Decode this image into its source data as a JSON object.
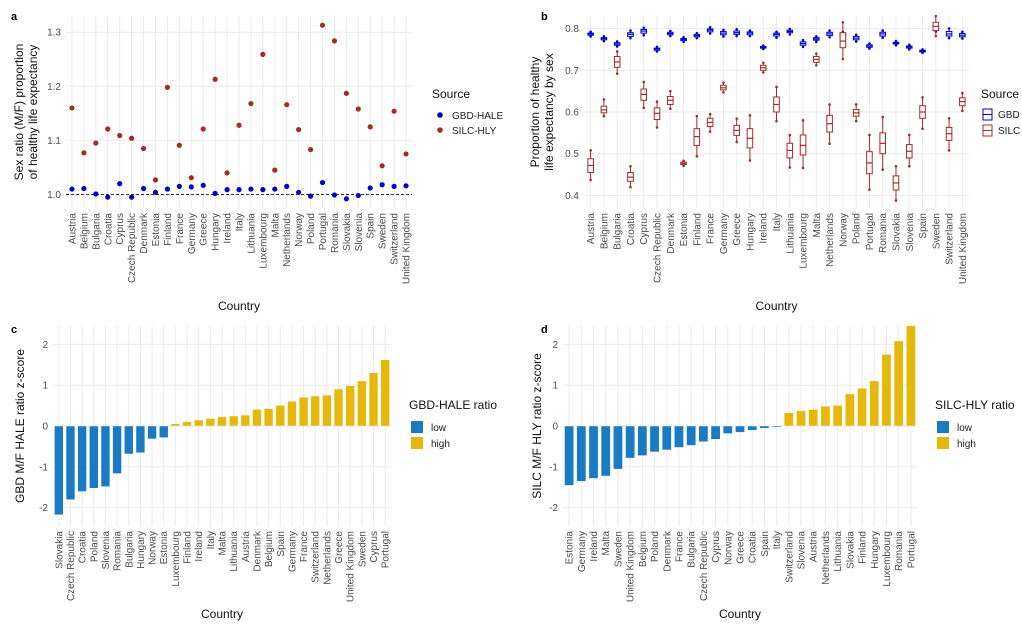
{
  "panel_labels": [
    "a",
    "b",
    "c",
    "d"
  ],
  "colors": {
    "gbd": "#0000cc",
    "silc": "#a52a2a",
    "low": "#1a7ac4",
    "high": "#e6b80c"
  },
  "chart_data": [
    {
      "type": "scatter",
      "panel": "a",
      "ylabel": "Sex ratio (M/F) proportion\nof healthy life expectancy",
      "xlabel": "Country",
      "ylim": [
        0.975,
        1.33
      ],
      "yticks": [
        1.0,
        1.1,
        1.2,
        1.3
      ],
      "yticklabels": [
        "1.0",
        "1.1",
        "1.2",
        "1.3"
      ],
      "reference_line": 1.0,
      "grid": true,
      "legend_position": "right",
      "legend_title": "Source",
      "categories": [
        "Austria",
        "Belgium",
        "Bulgaria",
        "Croatia",
        "Cyprus",
        "Czech Republic",
        "Denmark",
        "Estonia",
        "Finland",
        "France",
        "Germany",
        "Greece",
        "Hungary",
        "Ireland",
        "Italy",
        "Lithuania",
        "Luxembourg",
        "Malta",
        "Netherlands",
        "Norway",
        "Poland",
        "Portugal",
        "Romania",
        "Slovakia",
        "Slovenia",
        "Spain",
        "Sweden",
        "Switzerland",
        "United Kingdom"
      ],
      "series": [
        {
          "name": "GBD-HALE",
          "color": "#0000cc",
          "values": [
            1.01,
            1.011,
            1.001,
            0.995,
            1.02,
            0.995,
            1.011,
            1.004,
            1.01,
            1.015,
            1.014,
            1.017,
            1.002,
            1.009,
            1.009,
            1.01,
            1.009,
            1.01,
            1.015,
            1.004,
            0.997,
            1.022,
            0.999,
            0.992,
            0.998,
            1.012,
            1.018,
            1.015,
            1.016
          ]
        },
        {
          "name": "SILC-HLY",
          "color": "#a52a2a",
          "values": [
            1.16,
            1.077,
            1.095,
            1.121,
            1.109,
            1.104,
            1.085,
            1.027,
            1.198,
            1.091,
            1.031,
            1.121,
            1.213,
            1.04,
            1.128,
            1.168,
            1.259,
            1.045,
            1.166,
            1.12,
            1.083,
            1.313,
            1.284,
            1.187,
            1.158,
            1.125,
            1.053,
            1.154,
            1.075
          ]
        }
      ]
    },
    {
      "type": "box",
      "panel": "b",
      "ylabel": "Proportion of healthy\nlife expectancy by sex",
      "xlabel": "Country",
      "ylim": [
        0.37,
        0.83
      ],
      "yticks": [
        0.4,
        0.5,
        0.6,
        0.7,
        0.8
      ],
      "yticklabels": [
        "0.4",
        "0.5",
        "0.6",
        "0.7",
        "0.8"
      ],
      "grid": true,
      "legend_position": "right",
      "legend_title": "Source",
      "legend_labels": [
        "GBD",
        "SILC"
      ],
      "categories": [
        "Austria",
        "Belgium",
        "Bulgaria",
        "Croatia",
        "Cyprus",
        "Czech Republic",
        "Denmark",
        "Estonia",
        "Finland",
        "France",
        "Germany",
        "Greece",
        "Hungary",
        "Ireland",
        "Italy",
        "Lithuania",
        "Luxembourg",
        "Malta",
        "Netherlands",
        "Norway",
        "Poland",
        "Portugal",
        "Romania",
        "Slovakia",
        "Slovenia",
        "Spain",
        "Sweden",
        "Switzerland",
        "United Kingdom"
      ],
      "series": [
        {
          "name": "GBD",
          "color": "#0000cc",
          "boxes": [
            [
              0.781,
              0.784,
              0.787,
              0.789,
              0.792
            ],
            [
              0.77,
              0.773,
              0.776,
              0.778,
              0.781
            ],
            [
              0.757,
              0.76,
              0.763,
              0.766,
              0.769
            ],
            [
              0.777,
              0.781,
              0.786,
              0.79,
              0.795
            ],
            [
              0.784,
              0.789,
              0.794,
              0.798,
              0.802
            ],
            [
              0.745,
              0.748,
              0.751,
              0.753,
              0.756
            ],
            [
              0.782,
              0.785,
              0.788,
              0.791,
              0.794
            ],
            [
              0.768,
              0.771,
              0.774,
              0.776,
              0.779
            ],
            [
              0.777,
              0.78,
              0.783,
              0.786,
              0.789
            ],
            [
              0.788,
              0.792,
              0.796,
              0.799,
              0.803
            ],
            [
              0.781,
              0.785,
              0.789,
              0.793,
              0.797
            ],
            [
              0.782,
              0.786,
              0.79,
              0.794,
              0.798
            ],
            [
              0.782,
              0.785,
              0.789,
              0.792,
              0.795
            ],
            [
              0.751,
              0.753,
              0.755,
              0.757,
              0.759
            ],
            [
              0.778,
              0.782,
              0.786,
              0.789,
              0.792
            ],
            [
              0.786,
              0.79,
              0.793,
              0.796,
              0.799
            ],
            [
              0.756,
              0.76,
              0.764,
              0.768,
              0.772
            ],
            [
              0.768,
              0.772,
              0.775,
              0.778,
              0.781
            ],
            [
              0.779,
              0.783,
              0.787,
              0.791,
              0.795
            ],
            [
              0.779,
              0.782,
              0.786,
              0.789,
              0.792
            ],
            [
              0.769,
              0.773,
              0.777,
              0.781,
              0.785
            ],
            [
              0.752,
              0.755,
              0.758,
              0.761,
              0.764
            ],
            [
              0.778,
              0.782,
              0.787,
              0.791,
              0.795
            ],
            [
              0.76,
              0.763,
              0.765,
              0.767,
              0.77
            ],
            [
              0.75,
              0.753,
              0.756,
              0.758,
              0.761
            ],
            [
              0.742,
              0.744,
              0.746,
              0.748,
              0.75
            ],
            [
              0.793,
              0.796,
              0.799,
              0.802,
              0.805
            ],
            [
              0.777,
              0.782,
              0.787,
              0.793,
              0.8
            ],
            [
              0.776,
              0.78,
              0.784,
              0.788,
              0.792
            ]
          ]
        },
        {
          "name": "SILC",
          "color": "#a52a2a",
          "boxes": [
            [
              0.437,
              0.455,
              0.472,
              0.488,
              0.508
            ],
            [
              0.59,
              0.598,
              0.605,
              0.614,
              0.63
            ],
            [
              0.692,
              0.707,
              0.72,
              0.733,
              0.745
            ],
            [
              0.42,
              0.434,
              0.444,
              0.455,
              0.47
            ],
            [
              0.61,
              0.628,
              0.642,
              0.655,
              0.672
            ],
            [
              0.563,
              0.582,
              0.597,
              0.61,
              0.625
            ],
            [
              0.608,
              0.618,
              0.628,
              0.637,
              0.65
            ],
            [
              0.471,
              0.474,
              0.477,
              0.48,
              0.483
            ],
            [
              0.494,
              0.52,
              0.541,
              0.56,
              0.59
            ],
            [
              0.553,
              0.565,
              0.575,
              0.585,
              0.595
            ],
            [
              0.647,
              0.653,
              0.658,
              0.664,
              0.67
            ],
            [
              0.528,
              0.544,
              0.556,
              0.568,
              0.584
            ],
            [
              0.484,
              0.514,
              0.537,
              0.56,
              0.592
            ],
            [
              0.695,
              0.7,
              0.706,
              0.712,
              0.718
            ],
            [
              0.578,
              0.6,
              0.618,
              0.636,
              0.66
            ],
            [
              0.467,
              0.49,
              0.508,
              0.525,
              0.545
            ],
            [
              0.466,
              0.497,
              0.52,
              0.545,
              0.58
            ],
            [
              0.712,
              0.719,
              0.726,
              0.733,
              0.74
            ],
            [
              0.524,
              0.552,
              0.572,
              0.592,
              0.618
            ],
            [
              0.727,
              0.754,
              0.77,
              0.79,
              0.815
            ],
            [
              0.578,
              0.59,
              0.598,
              0.606,
              0.618
            ],
            [
              0.414,
              0.452,
              0.478,
              0.505,
              0.545
            ],
            [
              0.462,
              0.5,
              0.525,
              0.55,
              0.588
            ],
            [
              0.388,
              0.413,
              0.43,
              0.447,
              0.47
            ],
            [
              0.47,
              0.49,
              0.506,
              0.522,
              0.545
            ],
            [
              0.56,
              0.585,
              0.6,
              0.615,
              0.635
            ],
            [
              0.782,
              0.795,
              0.805,
              0.815,
              0.83
            ],
            [
              0.508,
              0.532,
              0.548,
              0.563,
              0.585
            ],
            [
              0.603,
              0.615,
              0.625,
              0.634,
              0.645
            ]
          ]
        }
      ]
    },
    {
      "type": "bar",
      "panel": "c",
      "ylabel": "GBD M/F HALE ratio z-score",
      "xlabel": "Country",
      "ylim": [
        -2.45,
        2.45
      ],
      "yticks": [
        -2,
        -1,
        0,
        1,
        2
      ],
      "yticklabels": [
        "-2",
        "-1",
        "0",
        "1",
        "2"
      ],
      "grid": true,
      "legend_position": "right",
      "legend_title": "GBD-HALE ratio",
      "legend_labels": [
        "low",
        "high"
      ],
      "categories": [
        "Slovakia",
        "Czech Republic",
        "Croatia",
        "Poland",
        "Slovenia",
        "Romania",
        "Bulgaria",
        "Hungary",
        "Norway",
        "Estonia",
        "Luxembourg",
        "Finland",
        "Ireland",
        "Italy",
        "Malta",
        "Lithuania",
        "Austria",
        "Denmark",
        "Belgium",
        "Spain",
        "Germany",
        "France",
        "Switzerland",
        "Netherlands",
        "Greece",
        "United Kingdom",
        "Sweden",
        "Cyprus",
        "Portugal"
      ],
      "values": [
        -2.17,
        -1.8,
        -1.6,
        -1.52,
        -1.48,
        -1.16,
        -0.68,
        -0.65,
        -0.31,
        -0.28,
        0.05,
        0.1,
        0.14,
        0.18,
        0.22,
        0.24,
        0.26,
        0.4,
        0.42,
        0.5,
        0.6,
        0.7,
        0.73,
        0.75,
        0.9,
        0.98,
        1.1,
        1.3,
        1.62
      ]
    },
    {
      "type": "bar",
      "panel": "d",
      "ylabel": "SILC M/F HLY ratio z-score",
      "xlabel": "Country",
      "ylim": [
        -2.45,
        2.45
      ],
      "yticks": [
        -2,
        -1,
        0,
        1,
        2
      ],
      "yticklabels": [
        "-2",
        "-1",
        "0",
        "1",
        "2"
      ],
      "grid": true,
      "legend_position": "right",
      "legend_title": "SILC-HLY ratio",
      "legend_labels": [
        "low",
        "high"
      ],
      "categories": [
        "Estonia",
        "Germany",
        "Ireland",
        "Malta",
        "Sweden",
        "United Kingdom",
        "Belgium",
        "Poland",
        "Denmark",
        "France",
        "Bulgaria",
        "Czech Republic",
        "Cyprus",
        "Norway",
        "Greece",
        "Croatia",
        "Spain",
        "Italy",
        "Switzerland",
        "Slovenia",
        "Austria",
        "Netherlands",
        "Lithuania",
        "Slovakia",
        "Finland",
        "Hungary",
        "Luxembourg",
        "Romania",
        "Portugal"
      ],
      "values": [
        -1.45,
        -1.35,
        -1.28,
        -1.22,
        -1.05,
        -0.78,
        -0.72,
        -0.63,
        -0.58,
        -0.52,
        -0.47,
        -0.38,
        -0.32,
        -0.18,
        -0.15,
        -0.1,
        -0.05,
        -0.02,
        0.32,
        0.37,
        0.4,
        0.48,
        0.5,
        0.78,
        0.92,
        1.1,
        1.75,
        2.08,
        2.45
      ]
    }
  ]
}
